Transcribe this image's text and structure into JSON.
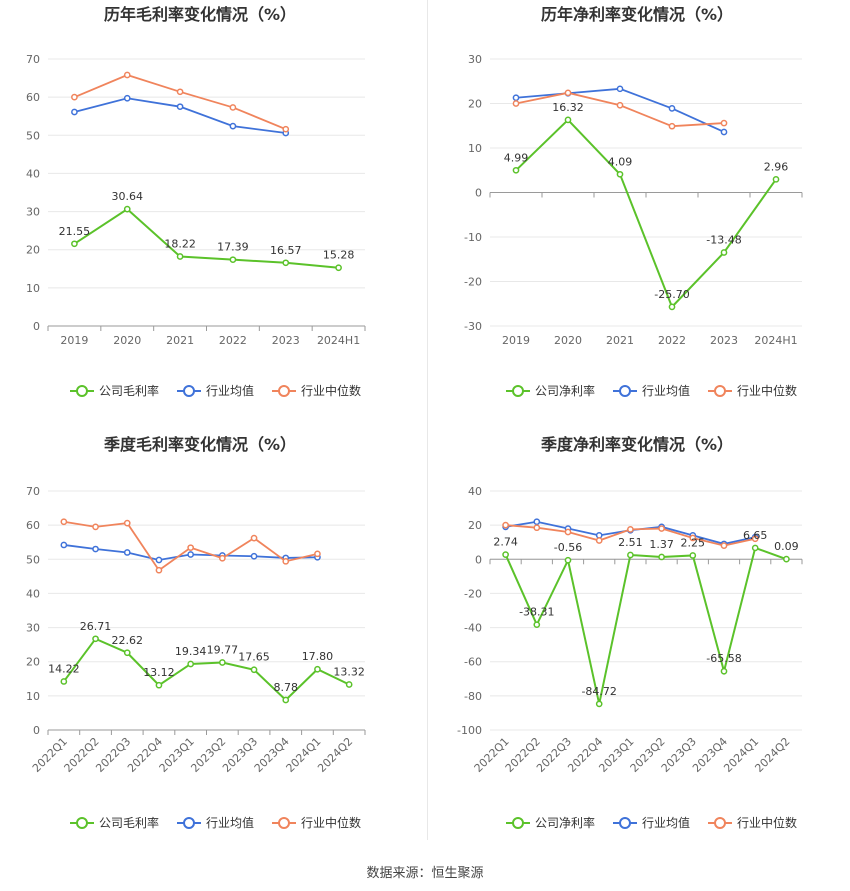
{
  "source_text": "数据来源：恒生聚源",
  "colors": {
    "company": "#5bc22a",
    "avg": "#3f72d9",
    "median": "#f0845c",
    "grid": "#e8e8e8",
    "axis": "#9a9a9a"
  },
  "chart_data": [
    {
      "type": "line",
      "title": "历年毛利率变化情况（%）",
      "categories": [
        "2019",
        "2020",
        "2021",
        "2022",
        "2023",
        "2024H1"
      ],
      "ylim": [
        0,
        70
      ],
      "yticks": [
        0,
        10,
        20,
        30,
        40,
        50,
        60,
        70
      ],
      "rotate_x": false,
      "grid": true,
      "legend_position": "bottom",
      "series": [
        {
          "name": "公司毛利率",
          "key": "company",
          "values": [
            21.55,
            30.64,
            18.22,
            17.39,
            16.57,
            15.28
          ],
          "labels": [
            "21.55",
            "30.64",
            "18.22",
            "17.39",
            "16.57",
            "15.28"
          ]
        },
        {
          "name": "行业均值",
          "key": "avg",
          "values": [
            56.1,
            59.7,
            57.5,
            52.4,
            50.6,
            null
          ]
        },
        {
          "name": "行业中位数",
          "key": "median",
          "values": [
            60.0,
            65.8,
            61.4,
            57.3,
            51.6,
            null
          ]
        }
      ]
    },
    {
      "type": "line",
      "title": "历年净利率变化情况（%）",
      "categories": [
        "2019",
        "2020",
        "2021",
        "2022",
        "2023",
        "2024H1"
      ],
      "ylim": [
        -30,
        30
      ],
      "yticks": [
        -30,
        -20,
        -10,
        0,
        10,
        20,
        30
      ],
      "rotate_x": false,
      "grid": true,
      "legend_position": "bottom",
      "series": [
        {
          "name": "公司净利率",
          "key": "company",
          "values": [
            4.99,
            16.32,
            4.09,
            -25.7,
            -13.48,
            2.96
          ],
          "labels": [
            "4.99",
            "16.32",
            "4.09",
            "-25.70",
            "-13.48",
            "2.96"
          ]
        },
        {
          "name": "行业均值",
          "key": "avg",
          "values": [
            21.3,
            22.3,
            23.3,
            18.9,
            13.6,
            null
          ]
        },
        {
          "name": "行业中位数",
          "key": "median",
          "values": [
            20.0,
            22.4,
            19.6,
            14.9,
            15.6,
            null
          ]
        }
      ]
    },
    {
      "type": "line",
      "title": "季度毛利率变化情况（%）",
      "categories": [
        "2022Q1",
        "2022Q2",
        "2022Q3",
        "2022Q4",
        "2023Q1",
        "2023Q2",
        "2023Q3",
        "2023Q4",
        "2024Q1",
        "2024Q2"
      ],
      "ylim": [
        0,
        70
      ],
      "yticks": [
        0,
        10,
        20,
        30,
        40,
        50,
        60,
        70
      ],
      "rotate_x": true,
      "grid": true,
      "legend_position": "bottom",
      "series": [
        {
          "name": "公司毛利率",
          "key": "company",
          "values": [
            14.22,
            26.71,
            22.62,
            13.12,
            19.34,
            19.77,
            17.65,
            8.78,
            17.8,
            13.32
          ],
          "labels": [
            "14.22",
            "26.71",
            "22.62",
            "13.12",
            "19.34",
            "19.77",
            "17.65",
            "8.78",
            "17.80",
            "13.32"
          ]
        },
        {
          "name": "行业均值",
          "key": "avg",
          "values": [
            54.2,
            53.0,
            52.0,
            49.8,
            51.4,
            51.1,
            50.9,
            50.4,
            50.6,
            null
          ]
        },
        {
          "name": "行业中位数",
          "key": "median",
          "values": [
            61.0,
            59.5,
            60.6,
            46.8,
            53.4,
            50.3,
            56.2,
            49.4,
            51.6,
            null
          ]
        }
      ]
    },
    {
      "type": "line",
      "title": "季度净利率变化情况（%）",
      "categories": [
        "2022Q1",
        "2022Q2",
        "2022Q3",
        "2022Q4",
        "2023Q1",
        "2023Q2",
        "2023Q3",
        "2023Q4",
        "2024Q1",
        "2024Q2"
      ],
      "ylim": [
        -100,
        40
      ],
      "yticks": [
        -100,
        -80,
        -60,
        -40,
        -20,
        0,
        20,
        40
      ],
      "rotate_x": true,
      "grid": true,
      "legend_position": "bottom",
      "series": [
        {
          "name": "公司净利率",
          "key": "company",
          "values": [
            2.74,
            -38.31,
            -0.56,
            -84.72,
            2.51,
            1.37,
            2.25,
            -65.58,
            6.65,
            0.09
          ],
          "labels": [
            "2.74",
            "-38.31",
            "-0.56",
            "-84.72",
            "2.51",
            "1.37",
            "2.25",
            "-65.58",
            "6.65",
            "0.09"
          ]
        },
        {
          "name": "行业均值",
          "key": "avg",
          "values": [
            19.0,
            22.0,
            18.0,
            14.0,
            17.0,
            19.0,
            14.0,
            9.0,
            13.0,
            null
          ]
        },
        {
          "name": "行业中位数",
          "key": "median",
          "values": [
            20.0,
            18.5,
            16.0,
            11.0,
            17.5,
            18.0,
            12.5,
            8.0,
            12.0,
            null
          ]
        }
      ]
    }
  ]
}
